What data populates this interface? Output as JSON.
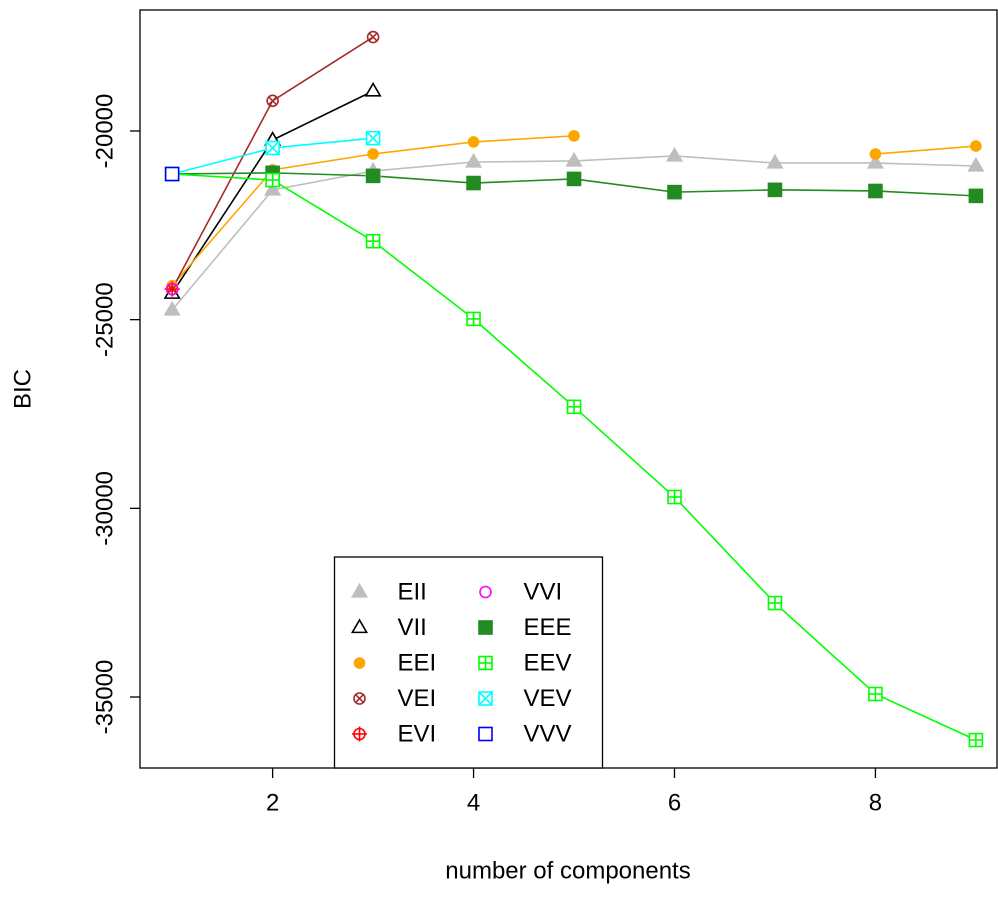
{
  "chart_data": {
    "type": "line",
    "x_label": "number of components",
    "y_label": "BIC",
    "x": [
      1,
      2,
      3,
      4,
      5,
      6,
      7,
      8,
      9
    ],
    "xlim": [
      0.68,
      9.21
    ],
    "xticks": [
      2,
      4,
      6,
      8
    ],
    "ylim": [
      -36881,
      -16794
    ],
    "yticks": [
      -35000,
      -30000,
      -25000,
      -20000
    ],
    "legend": "bottom",
    "series": [
      {
        "name": "EII",
        "color": "#bebebe",
        "symbol": "triangle-filled",
        "values": [
          -24744,
          -21564,
          -21060,
          -20822,
          -20795,
          -20662,
          -20848,
          -20848,
          -20928
        ]
      },
      {
        "name": "VII",
        "color": "#000000",
        "symbol": "triangle",
        "values": [
          -24300,
          -20240,
          -18940,
          null,
          null,
          null,
          null,
          null,
          null
        ]
      },
      {
        "name": "EEI",
        "color": "#ffa500",
        "symbol": "circle-filled",
        "values": [
          -24100,
          -21030,
          -20610,
          -20290,
          -20130,
          null,
          null,
          -20610,
          -20400
        ]
      },
      {
        "name": "VEI",
        "color": "#a52a2a",
        "symbol": "circle-x",
        "values": [
          -24190,
          -19200,
          -17510,
          null,
          null,
          null,
          null,
          null,
          null
        ]
      },
      {
        "name": "EVI",
        "color": "#ff0000",
        "symbol": "circle-plus",
        "values": [
          -24190,
          null,
          null,
          null,
          null,
          null,
          null,
          null,
          null
        ]
      },
      {
        "name": "VVI",
        "color": "#ff00ff",
        "symbol": "circle",
        "values": [
          -24190,
          null,
          null,
          null,
          null,
          null,
          null,
          null,
          null
        ]
      },
      {
        "name": "EEE",
        "color": "#228b22",
        "symbol": "square-filled",
        "values": [
          -21140,
          -21110,
          -21190,
          -21380,
          -21270,
          -21620,
          -21560,
          -21590,
          -21720
        ]
      },
      {
        "name": "EEV",
        "color": "#00ff00",
        "symbol": "square-plus",
        "values": [
          -21140,
          -21300,
          -22920,
          -24980,
          -27310,
          -29700,
          -32510,
          -34920,
          -36140
        ]
      },
      {
        "name": "VEV",
        "color": "#00ffff",
        "symbol": "square-x",
        "values": [
          -21140,
          -20450,
          -20190,
          null,
          null,
          null,
          null,
          null,
          null
        ]
      },
      {
        "name": "VVV",
        "color": "#0000ff",
        "symbol": "square",
        "values": [
          -21140,
          null,
          null,
          null,
          null,
          null,
          null,
          null,
          null
        ]
      }
    ]
  }
}
